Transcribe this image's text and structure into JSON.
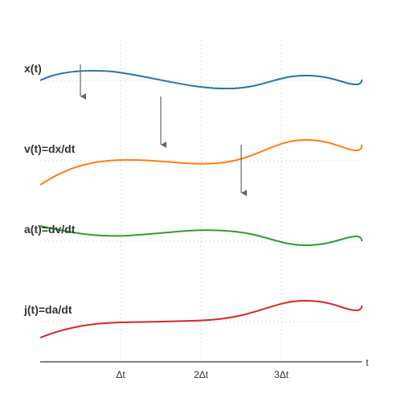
{
  "curves": [
    {
      "label": "x(t)"
    },
    {
      "label": "v(t)=dx/dt"
    },
    {
      "label": "a(t)=dv/dt"
    },
    {
      "label": "j(t)=da/dt"
    }
  ],
  "axis": {
    "label": "t",
    "ticks": [
      "Δt",
      "2Δt",
      "3Δt"
    ]
  }
}
